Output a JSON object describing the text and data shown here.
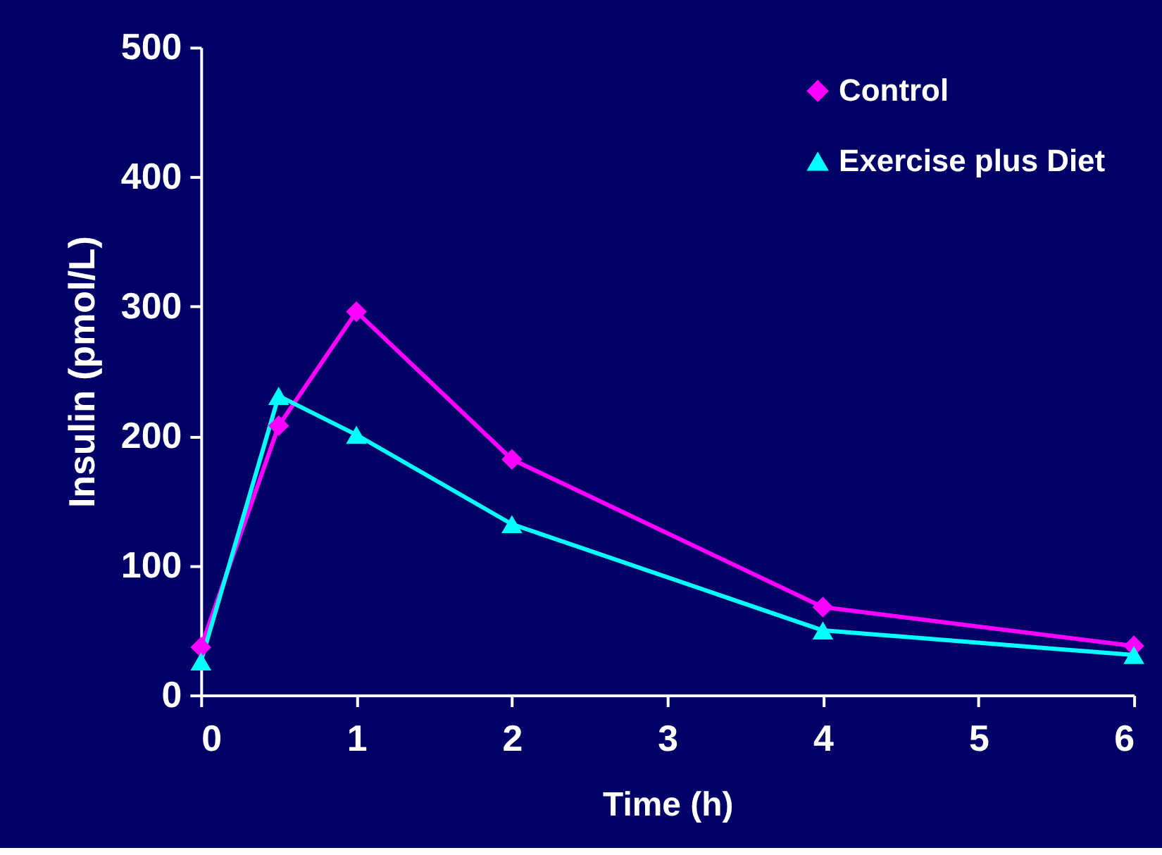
{
  "chart_data": {
    "type": "line",
    "xlabel": "Time (h)",
    "ylabel": "Insulin (pmol/L)",
    "xlim": [
      0,
      6
    ],
    "xticks": [
      0,
      1,
      2,
      3,
      4,
      5,
      6
    ],
    "ylim": [
      0,
      500
    ],
    "yticks": [
      0,
      100,
      200,
      300,
      400,
      500
    ],
    "grid": false,
    "legend": "top right",
    "line_style": "solid",
    "series": [
      {
        "name": "Control",
        "color": "#ff00ff",
        "marker": "diamond",
        "x": [
          0,
          0.5,
          1,
          2,
          4,
          6
        ],
        "values": [
          37,
          208,
          296,
          182,
          68,
          38
        ]
      },
      {
        "name": "Exercise plus Diet",
        "color": "#00ffff",
        "marker": "triangle",
        "x": [
          0,
          0.5,
          1,
          2,
          4,
          6
        ],
        "values": [
          26,
          231,
          201,
          132,
          50,
          31
        ]
      }
    ]
  }
}
